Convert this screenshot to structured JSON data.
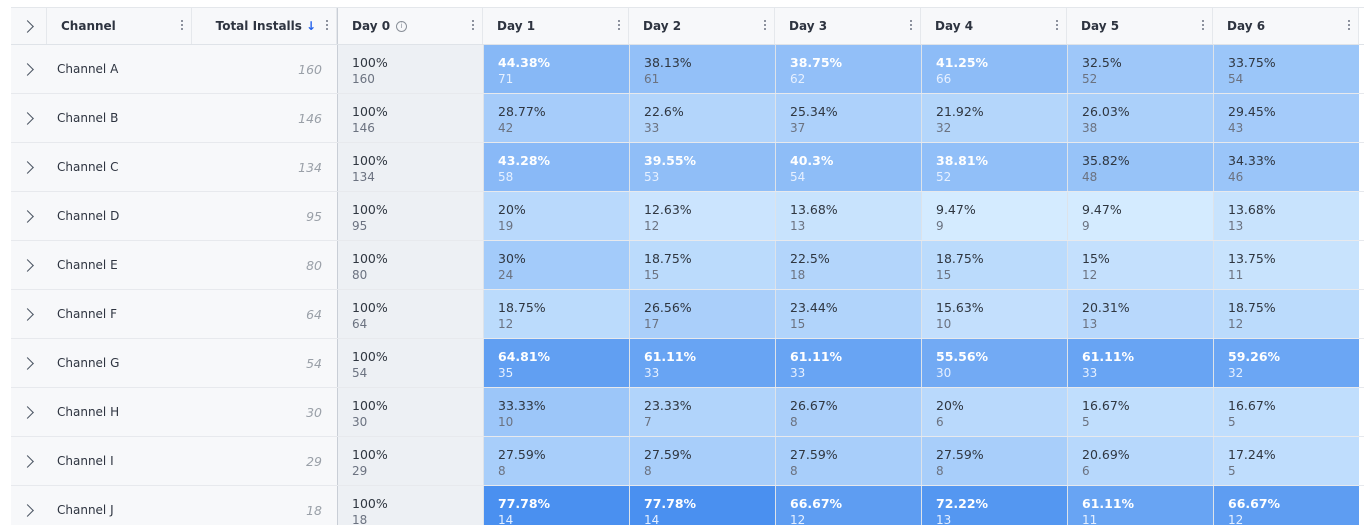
{
  "header": {
    "channel_label": "Channel",
    "installs_label": "Total Installs",
    "sort_icon": "↓",
    "day_labels": [
      "Day 0",
      "Day 1",
      "Day 2",
      "Day 3",
      "Day 4",
      "Day 5",
      "Day 6"
    ],
    "info_icon": "i"
  },
  "rows": [
    {
      "channel": "Channel A",
      "installs": "160",
      "day0": {
        "pct": "100%",
        "count": "160"
      },
      "days": [
        {
          "pct": "44.38%",
          "count": "71"
        },
        {
          "pct": "38.13%",
          "count": "61"
        },
        {
          "pct": "38.75%",
          "count": "62"
        },
        {
          "pct": "41.25%",
          "count": "66"
        },
        {
          "pct": "32.5%",
          "count": "52"
        },
        {
          "pct": "33.75%",
          "count": "54"
        }
      ]
    },
    {
      "channel": "Channel B",
      "installs": "146",
      "day0": {
        "pct": "100%",
        "count": "146"
      },
      "days": [
        {
          "pct": "28.77%",
          "count": "42"
        },
        {
          "pct": "22.6%",
          "count": "33"
        },
        {
          "pct": "25.34%",
          "count": "37"
        },
        {
          "pct": "21.92%",
          "count": "32"
        },
        {
          "pct": "26.03%",
          "count": "38"
        },
        {
          "pct": "29.45%",
          "count": "43"
        }
      ]
    },
    {
      "channel": "Channel C",
      "installs": "134",
      "day0": {
        "pct": "100%",
        "count": "134"
      },
      "days": [
        {
          "pct": "43.28%",
          "count": "58"
        },
        {
          "pct": "39.55%",
          "count": "53"
        },
        {
          "pct": "40.3%",
          "count": "54"
        },
        {
          "pct": "38.81%",
          "count": "52"
        },
        {
          "pct": "35.82%",
          "count": "48"
        },
        {
          "pct": "34.33%",
          "count": "46"
        }
      ]
    },
    {
      "channel": "Channel D",
      "installs": "95",
      "day0": {
        "pct": "100%",
        "count": "95"
      },
      "days": [
        {
          "pct": "20%",
          "count": "19"
        },
        {
          "pct": "12.63%",
          "count": "12"
        },
        {
          "pct": "13.68%",
          "count": "13"
        },
        {
          "pct": "9.47%",
          "count": "9"
        },
        {
          "pct": "9.47%",
          "count": "9"
        },
        {
          "pct": "13.68%",
          "count": "13"
        }
      ]
    },
    {
      "channel": "Channel E",
      "installs": "80",
      "day0": {
        "pct": "100%",
        "count": "80"
      },
      "days": [
        {
          "pct": "30%",
          "count": "24"
        },
        {
          "pct": "18.75%",
          "count": "15"
        },
        {
          "pct": "22.5%",
          "count": "18"
        },
        {
          "pct": "18.75%",
          "count": "15"
        },
        {
          "pct": "15%",
          "count": "12"
        },
        {
          "pct": "13.75%",
          "count": "11"
        }
      ]
    },
    {
      "channel": "Channel F",
      "installs": "64",
      "day0": {
        "pct": "100%",
        "count": "64"
      },
      "days": [
        {
          "pct": "18.75%",
          "count": "12"
        },
        {
          "pct": "26.56%",
          "count": "17"
        },
        {
          "pct": "23.44%",
          "count": "15"
        },
        {
          "pct": "15.63%",
          "count": "10"
        },
        {
          "pct": "20.31%",
          "count": "13"
        },
        {
          "pct": "18.75%",
          "count": "12"
        }
      ]
    },
    {
      "channel": "Channel G",
      "installs": "54",
      "day0": {
        "pct": "100%",
        "count": "54"
      },
      "days": [
        {
          "pct": "64.81%",
          "count": "35"
        },
        {
          "pct": "61.11%",
          "count": "33"
        },
        {
          "pct": "61.11%",
          "count": "33"
        },
        {
          "pct": "55.56%",
          "count": "30"
        },
        {
          "pct": "61.11%",
          "count": "33"
        },
        {
          "pct": "59.26%",
          "count": "32"
        }
      ]
    },
    {
      "channel": "Channel H",
      "installs": "30",
      "day0": {
        "pct": "100%",
        "count": "30"
      },
      "days": [
        {
          "pct": "33.33%",
          "count": "10"
        },
        {
          "pct": "23.33%",
          "count": "7"
        },
        {
          "pct": "26.67%",
          "count": "8"
        },
        {
          "pct": "20%",
          "count": "6"
        },
        {
          "pct": "16.67%",
          "count": "5"
        },
        {
          "pct": "16.67%",
          "count": "5"
        }
      ]
    },
    {
      "channel": "Channel I",
      "installs": "29",
      "day0": {
        "pct": "100%",
        "count": "29"
      },
      "days": [
        {
          "pct": "27.59%",
          "count": "8"
        },
        {
          "pct": "27.59%",
          "count": "8"
        },
        {
          "pct": "27.59%",
          "count": "8"
        },
        {
          "pct": "27.59%",
          "count": "8"
        },
        {
          "pct": "20.69%",
          "count": "6"
        },
        {
          "pct": "17.24%",
          "count": "5"
        }
      ]
    },
    {
      "channel": "Channel J",
      "installs": "18",
      "day0": {
        "pct": "100%",
        "count": "18"
      },
      "days": [
        {
          "pct": "77.78%",
          "count": "14"
        },
        {
          "pct": "77.78%",
          "count": "14"
        },
        {
          "pct": "66.67%",
          "count": "12"
        },
        {
          "pct": "72.22%",
          "count": "13"
        },
        {
          "pct": "61.11%",
          "count": "11"
        },
        {
          "pct": "66.67%",
          "count": "12"
        }
      ]
    }
  ]
}
